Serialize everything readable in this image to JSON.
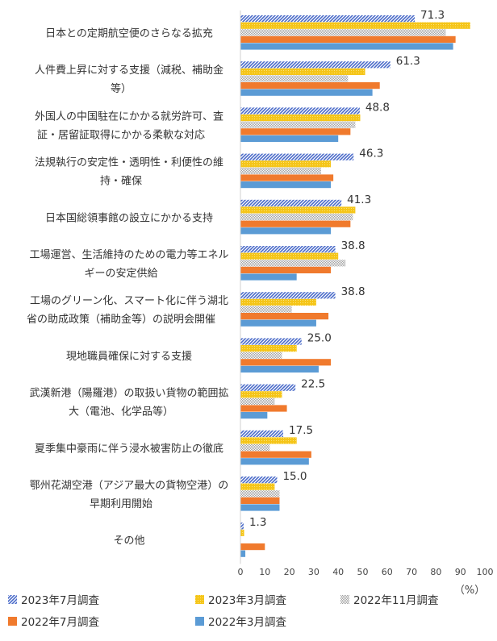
{
  "chart_data": {
    "type": "bar",
    "orientation": "horizontal",
    "unit": "（%）",
    "xlim": [
      0,
      100
    ],
    "x_ticks": [
      "0",
      "10",
      "20",
      "30",
      "40",
      "50",
      "60",
      "70",
      "80",
      "90",
      "100"
    ],
    "grid": false,
    "legend_position": "bottom",
    "categories": [
      "日本との定期航空便のさらなる拡充",
      "人件費上昇に対する支援（減税、補助金等）",
      "外国人の中国駐在にかかる就労許可、査証・居留証取得にかかる柔軟な対応",
      "法規執行の安定性・透明性・利便性の維持・確保",
      "日本国総領事館の設立にかかる支持",
      "工場運営、生活維持のための電力等エネルギーの安定供給",
      "工場のグリーン化、スマート化に伴う湖北省の助成政策（補助金等）の説明会開催",
      "現地職員確保に対する支援",
      "武漢新港（陽羅港）の取扱い貨物の範囲拡大（電池、化学品等）",
      "夏季集中豪雨に伴う浸水被害防止の徹底",
      "鄂州花湖空港（アジア最大の貨物空港）の早期利用開始",
      "その他"
    ],
    "category_lines": [
      [
        "日本との定期航空便のさらなる拡充"
      ],
      [
        "人件費上昇に対する支援（減税、補助金",
        "等）"
      ],
      [
        "外国人の中国駐在にかかる就労許可、査",
        "証・居留証取得にかかる柔軟な対応"
      ],
      [
        "法規執行の安定性・透明性・利便性の維",
        "持・確保"
      ],
      [
        "日本国総領事館の設立にかかる支持"
      ],
      [
        "工場運営、生活維持のための電力等エネル",
        "ギーの安定供給"
      ],
      [
        "工場のグリーン化、スマート化に伴う湖北",
        "省の助成政策（補助金等）の説明会開催"
      ],
      [
        "現地職員確保に対する支援"
      ],
      [
        "武漢新港（陽羅港）の取扱い貨物の範囲拡",
        "大（電池、化学品等）"
      ],
      [
        "夏季集中豪雨に伴う浸水被害防止の徹底"
      ],
      [
        "鄂州花湖空港（アジア最大の貨物空港）の",
        "早期利用開始"
      ],
      [
        "その他"
      ]
    ],
    "series": [
      {
        "name": "2023年7月調査",
        "color": "#4a6bc9",
        "pattern": "diagonal-stripes",
        "values": [
          71.3,
          61.3,
          48.8,
          46.3,
          41.3,
          38.8,
          38.8,
          25.0,
          22.5,
          17.5,
          15.0,
          1.3
        ],
        "data_labels": [
          "71.3",
          "61.3",
          "48.8",
          "46.3",
          "41.3",
          "38.8",
          "38.8",
          "25.0",
          "22.5",
          "17.5",
          "15.0",
          "1.3"
        ]
      },
      {
        "name": "2023年3月調査",
        "color": "#f5c518",
        "pattern": "dots",
        "values": [
          94,
          51,
          49,
          37,
          47,
          40,
          31,
          23,
          17,
          23,
          14,
          1.5
        ]
      },
      {
        "name": "2022年11月調査",
        "color": "#b0b0b0",
        "pattern": "checker",
        "values": [
          84,
          44,
          47,
          33,
          46,
          43,
          21,
          17,
          14,
          12,
          16,
          0
        ]
      },
      {
        "name": "2022年7月調査",
        "color": "#f07a2d",
        "pattern": "solid",
        "values": [
          88,
          57,
          45,
          38,
          45,
          37,
          36,
          37,
          19,
          29,
          16,
          10
        ]
      },
      {
        "name": "2022年3月調査",
        "color": "#5b9bd5",
        "pattern": "solid",
        "values": [
          87,
          54,
          40,
          37,
          37,
          23,
          31,
          32,
          11,
          28,
          16,
          2
        ]
      }
    ]
  }
}
